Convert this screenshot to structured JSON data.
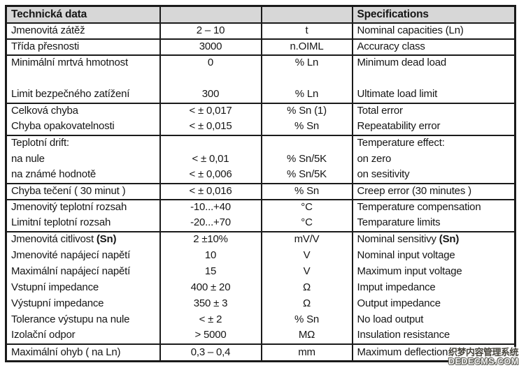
{
  "table": {
    "header": {
      "czech": "Technická data",
      "english": "Specifications"
    },
    "rows": [
      {
        "czech": "Jmenovitá zátěž",
        "value": "2 – 10",
        "unit": "t",
        "english": "Nominal capacities (Ln)",
        "sep": true
      },
      {
        "czech": "Třída přesnosti",
        "value": "3000",
        "unit": "n.OIML",
        "english": "Accuracy class",
        "sep": true
      },
      {
        "czech": "Minimální mrtvá hmotnost",
        "value": "0",
        "unit": "% Ln",
        "english": "Minimum dead load",
        "sep": true
      },
      {
        "czech": "",
        "value": "",
        "unit": "",
        "english": "",
        "sep": false
      },
      {
        "czech": "Limit bezpečného zatížení",
        "value": "300",
        "unit": "% Ln",
        "english": "Ultimate load limit",
        "sep": false
      },
      {
        "czech": "Celková chyba",
        "value": "< ± 0,017",
        "unit": "% Sn (1)",
        "english": "Total error",
        "sep": true
      },
      {
        "czech": "Chyba opakovatelnosti",
        "value": "< ± 0,015",
        "unit": "% Sn",
        "english": "Repeatability error",
        "sep": false
      },
      {
        "czech": "Teplotní drift:",
        "value": "",
        "unit": "",
        "english": "Temperature effect:",
        "sep": true
      },
      {
        "czech": "na nule",
        "value": "< ± 0,01",
        "unit": "% Sn/5K",
        "english": "on zero",
        "sep": false
      },
      {
        "czech": "na známé hodnotě",
        "value": "< ± 0,006",
        "unit": "% Sn/5K",
        "english": "on sesitivity",
        "sep": false
      },
      {
        "czech": "Chyba tečení ( 30 minut )",
        "value": "< ± 0,016",
        "unit": "% Sn",
        "english": "Creep error (30 minutes )",
        "sep": true
      },
      {
        "czech": "Jmenovitý teplotní rozsah",
        "value": "-10...+40",
        "unit": "°C",
        "english": "Temperature compensation",
        "sep": true
      },
      {
        "czech": "Limitní teplotní rozsah",
        "value": "-20...+70",
        "unit": "°C",
        "english": "Temparature limits",
        "sep": false
      },
      {
        "czech": "Jmenovitá citlivost ",
        "czech_bold": "(Sn)",
        "value": "2 ±10%",
        "unit": "mV/V",
        "english": "Nominal sensitivy ",
        "english_bold": "(Sn)",
        "sep": true
      },
      {
        "czech": "Jmenovité napájecí napětí",
        "value": "10",
        "unit": "V",
        "english": "Nominal input voltage",
        "sep": false
      },
      {
        "czech": "Maximální napájecí napětí",
        "value": "15",
        "unit": "V",
        "english": "Maximum input voltage",
        "sep": false
      },
      {
        "czech": "Vstupní impedance",
        "value": "400 ± 20",
        "unit": "Ω",
        "english": "Imput impedance",
        "sep": false
      },
      {
        "czech": "Výstupní impedance",
        "value": "350 ± 3",
        "unit": "Ω",
        "english": "Output impedance",
        "sep": false
      },
      {
        "czech": "Tolerance výstupu na nule",
        "value": "< ± 2",
        "unit": "% Sn",
        "english": "No load output",
        "sep": false
      },
      {
        "czech": "Izolační odpor",
        "value": "> 5000",
        "unit": "MΩ",
        "english": "Insulation resistance",
        "sep": false
      },
      {
        "czech": "Maximální ohyb ( na Ln)",
        "value": "0,3 – 0,4",
        "unit": "mm",
        "english": "Maximum deflection",
        "sep": true
      }
    ]
  },
  "watermark": {
    "line1": "织梦内容管理系统",
    "line2": "DEDECMS.COM"
  },
  "colors": {
    "header_bg": "#d7d7d7",
    "border": "#1a1a1a",
    "text": "#161616",
    "page_bg": "#ffffff"
  }
}
